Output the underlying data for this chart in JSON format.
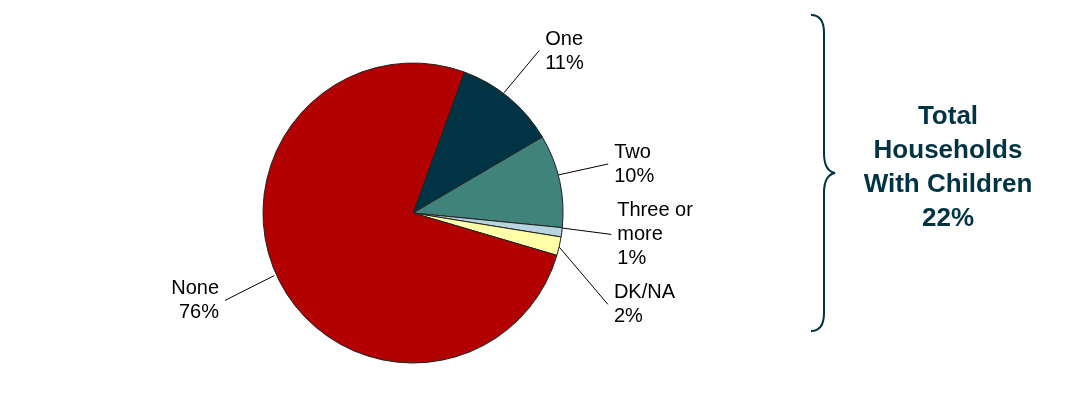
{
  "chart_data": {
    "type": "pie",
    "categories": [
      "One",
      "Two",
      "Three or more",
      "DK/NA",
      "None"
    ],
    "values": [
      11,
      10,
      1,
      2,
      76
    ],
    "colors": [
      "#003344",
      "#40837a",
      "#b8d4e0",
      "#ffffa8",
      "#b30000"
    ],
    "value_labels": [
      "11%",
      "10%",
      "1%",
      "2%",
      "76%"
    ],
    "annotations": [
      "Total Households With Children 22%"
    ]
  }
}
